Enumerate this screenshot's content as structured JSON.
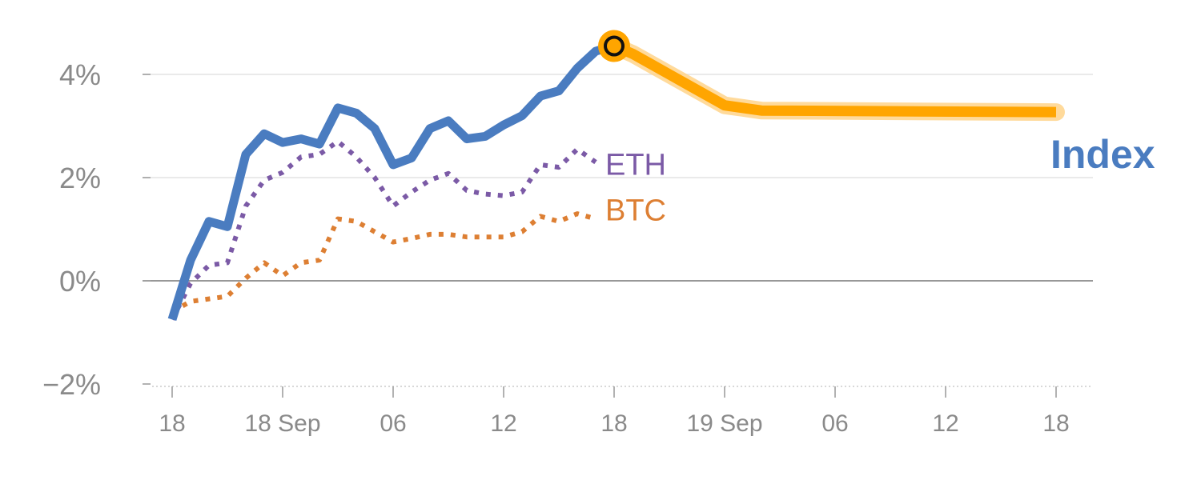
{
  "colors": {
    "index": "#4a7cc0",
    "eth": "#7b5aa6",
    "btc": "#dd7f33",
    "forecast": "#ffa500",
    "forecast_halo": "#ffd38a",
    "grid": "#e4e4e4",
    "zero_line": "#777777",
    "tick_text": "#8a8a8a"
  },
  "chart_data": {
    "type": "line",
    "ylim": [
      -2,
      4.8
    ],
    "yticks": [
      -2,
      0,
      2,
      4
    ],
    "ytick_labels": [
      "−2%",
      "0%",
      "2%",
      "4%"
    ],
    "xlim": [
      "2024-09-17T17:00",
      "2024-09-19T18:30"
    ],
    "xticks": [
      "2024-09-17T18:00",
      "2024-09-18T00:00",
      "2024-09-18T06:00",
      "2024-09-18T12:00",
      "2024-09-18T18:00",
      "2024-09-19T00:00",
      "2024-09-19T06:00",
      "2024-09-19T12:00",
      "2024-09-19T18:00"
    ],
    "xtick_labels": [
      "18",
      "18 Sep",
      "06",
      "12",
      "18",
      "19 Sep",
      "06",
      "12",
      "18"
    ],
    "grid": true,
    "series": [
      {
        "name": "Index",
        "style": "solid",
        "x": [
          "2024-09-17T18:00",
          "2024-09-17T19:00",
          "2024-09-17T20:00",
          "2024-09-17T21:00",
          "2024-09-17T22:00",
          "2024-09-17T23:00",
          "2024-09-18T00:00",
          "2024-09-18T01:00",
          "2024-09-18T02:00",
          "2024-09-18T03:00",
          "2024-09-18T04:00",
          "2024-09-18T05:00",
          "2024-09-18T06:00",
          "2024-09-18T07:00",
          "2024-09-18T08:00",
          "2024-09-18T09:00",
          "2024-09-18T10:00",
          "2024-09-18T11:00",
          "2024-09-18T12:00",
          "2024-09-18T13:00",
          "2024-09-18T14:00",
          "2024-09-18T15:00",
          "2024-09-18T16:00",
          "2024-09-18T17:00",
          "2024-09-18T18:00"
        ],
        "values": [
          -0.75,
          0.4,
          1.15,
          1.05,
          2.45,
          2.85,
          2.68,
          2.75,
          2.65,
          3.35,
          3.25,
          2.95,
          2.25,
          2.38,
          2.95,
          3.1,
          2.75,
          2.8,
          3.02,
          3.2,
          3.58,
          3.68,
          4.12,
          4.45,
          4.55
        ]
      },
      {
        "name": "ETH",
        "style": "dotted",
        "x": [
          "2024-09-17T18:00",
          "2024-09-17T19:00",
          "2024-09-17T20:00",
          "2024-09-17T21:00",
          "2024-09-17T22:00",
          "2024-09-17T23:00",
          "2024-09-18T00:00",
          "2024-09-18T01:00",
          "2024-09-18T02:00",
          "2024-09-18T03:00",
          "2024-09-18T04:00",
          "2024-09-18T05:00",
          "2024-09-18T06:00",
          "2024-09-18T07:00",
          "2024-09-18T08:00",
          "2024-09-18T09:00",
          "2024-09-18T10:00",
          "2024-09-18T11:00",
          "2024-09-18T12:00",
          "2024-09-18T13:00",
          "2024-09-18T14:00",
          "2024-09-18T15:00",
          "2024-09-18T16:00",
          "2024-09-18T17:00"
        ],
        "values": [
          -0.75,
          -0.05,
          0.3,
          0.35,
          1.45,
          1.95,
          2.1,
          2.4,
          2.45,
          2.7,
          2.4,
          2.0,
          1.45,
          1.72,
          1.95,
          2.08,
          1.75,
          1.68,
          1.65,
          1.72,
          2.25,
          2.2,
          2.55,
          2.3
        ]
      },
      {
        "name": "BTC",
        "style": "dotted",
        "x": [
          "2024-09-17T18:00",
          "2024-09-17T19:00",
          "2024-09-17T20:00",
          "2024-09-17T21:00",
          "2024-09-17T22:00",
          "2024-09-17T23:00",
          "2024-09-18T00:00",
          "2024-09-18T01:00",
          "2024-09-18T02:00",
          "2024-09-18T03:00",
          "2024-09-18T04:00",
          "2024-09-18T05:00",
          "2024-09-18T06:00",
          "2024-09-18T07:00",
          "2024-09-18T08:00",
          "2024-09-18T09:00",
          "2024-09-18T10:00",
          "2024-09-18T11:00",
          "2024-09-18T12:00",
          "2024-09-18T13:00",
          "2024-09-18T14:00",
          "2024-09-18T15:00",
          "2024-09-18T16:00",
          "2024-09-18T17:00"
        ],
        "values": [
          -0.6,
          -0.4,
          -0.35,
          -0.3,
          0.05,
          0.35,
          0.1,
          0.35,
          0.4,
          1.2,
          1.15,
          0.95,
          0.75,
          0.82,
          0.9,
          0.9,
          0.85,
          0.85,
          0.85,
          0.95,
          1.25,
          1.15,
          1.3,
          1.2
        ]
      },
      {
        "style": "forecast",
        "x": [
          "2024-09-18T18:00",
          "2024-09-18T19:00",
          "2024-09-18T20:00",
          "2024-09-18T21:00",
          "2024-09-18T22:00",
          "2024-09-18T23:00",
          "2024-09-19T00:00",
          "2024-09-19T01:00",
          "2024-09-19T02:00",
          "2024-09-19T18:00"
        ],
        "values": [
          4.55,
          4.4,
          4.2,
          4.0,
          3.8,
          3.6,
          3.4,
          3.35,
          3.3,
          3.27
        ]
      }
    ],
    "annotations": [
      {
        "text": "ETH",
        "series": "ETH"
      },
      {
        "text": "BTC",
        "series": "BTC"
      },
      {
        "text": "Index",
        "series": "Index"
      }
    ],
    "marker": {
      "x": "2024-09-18T18:00",
      "y": 4.55
    }
  }
}
